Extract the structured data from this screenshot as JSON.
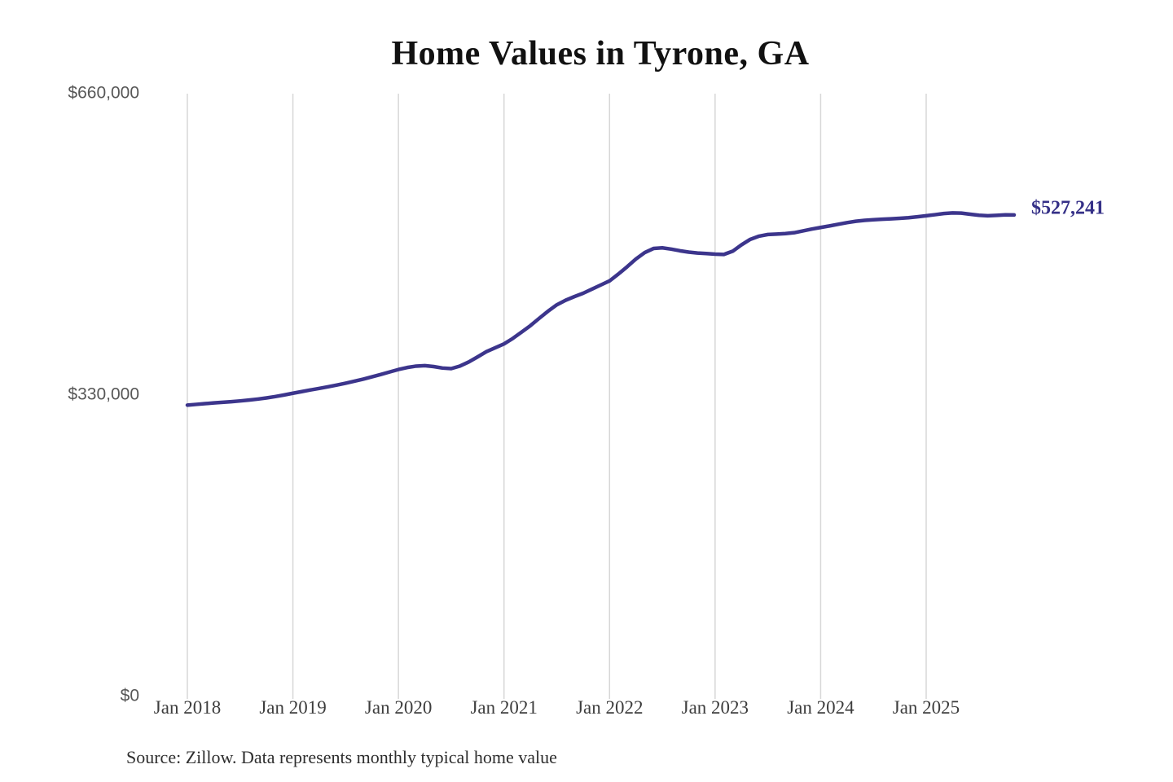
{
  "chart": {
    "title": "Home Values in Tyrone, GA",
    "end_label": "$527,241",
    "source": "Source: Zillow. Data represents monthly typical home value",
    "colors": {
      "line": "#3c358c",
      "end_label_text": "#353087",
      "gridline": "#d7d7d7",
      "title_text": "#111111",
      "y_axis_text": "#575757",
      "x_axis_text": "#3d3d3d",
      "source_text": "#2e2e2e",
      "background": "#ffffff"
    }
  },
  "chart_data": {
    "type": "line",
    "title": "Home Values in Tyrone, GA",
    "xlabel": "",
    "ylabel": "",
    "ylim": [
      0,
      660000
    ],
    "grid": "vertical-only",
    "legend": "none",
    "x_tick_labels": [
      "Jan 2018",
      "Jan 2019",
      "Jan 2020",
      "Jan 2021",
      "Jan 2022",
      "Jan 2023",
      "Jan 2024",
      "Jan 2025"
    ],
    "y_ticks": [
      {
        "label": "$0",
        "value": 0
      },
      {
        "label": "$330,000",
        "value": 330000
      },
      {
        "label": "$660,000",
        "value": 660000
      }
    ],
    "annotations": [
      {
        "text": "$527,241",
        "position": "line-end"
      }
    ],
    "series": [
      {
        "name": "Monthly typical home value",
        "start_month": "2018-01",
        "end_month": "2025-11",
        "frequency": "monthly",
        "final_value": 527241,
        "values": [
          319000,
          319800,
          320600,
          321400,
          322100,
          322800,
          323600,
          324500,
          325600,
          326900,
          328400,
          330100,
          332000,
          333800,
          335600,
          337300,
          339100,
          341000,
          343000,
          345200,
          347500,
          350000,
          352600,
          355300,
          358000,
          360200,
          361700,
          362200,
          361200,
          359600,
          359000,
          361800,
          366300,
          371800,
          377500,
          381800,
          386000,
          392000,
          399000,
          406000,
          414000,
          421800,
          428800,
          433800,
          437800,
          441500,
          446000,
          450500,
          455000,
          462500,
          470500,
          479000,
          486000,
          490500,
          491200,
          489800,
          488000,
          486500,
          485500,
          485000,
          484300,
          484000,
          487500,
          494500,
          500500,
          504000,
          505800,
          506300,
          506800,
          507800,
          509800,
          511800,
          513500,
          515200,
          517000,
          518800,
          520300,
          521300,
          522000,
          522500,
          523000,
          523500,
          524200,
          525200,
          526300,
          527500,
          528800,
          529500,
          529200,
          528000,
          526900,
          526300,
          526800,
          527300,
          527241
        ]
      }
    ]
  }
}
